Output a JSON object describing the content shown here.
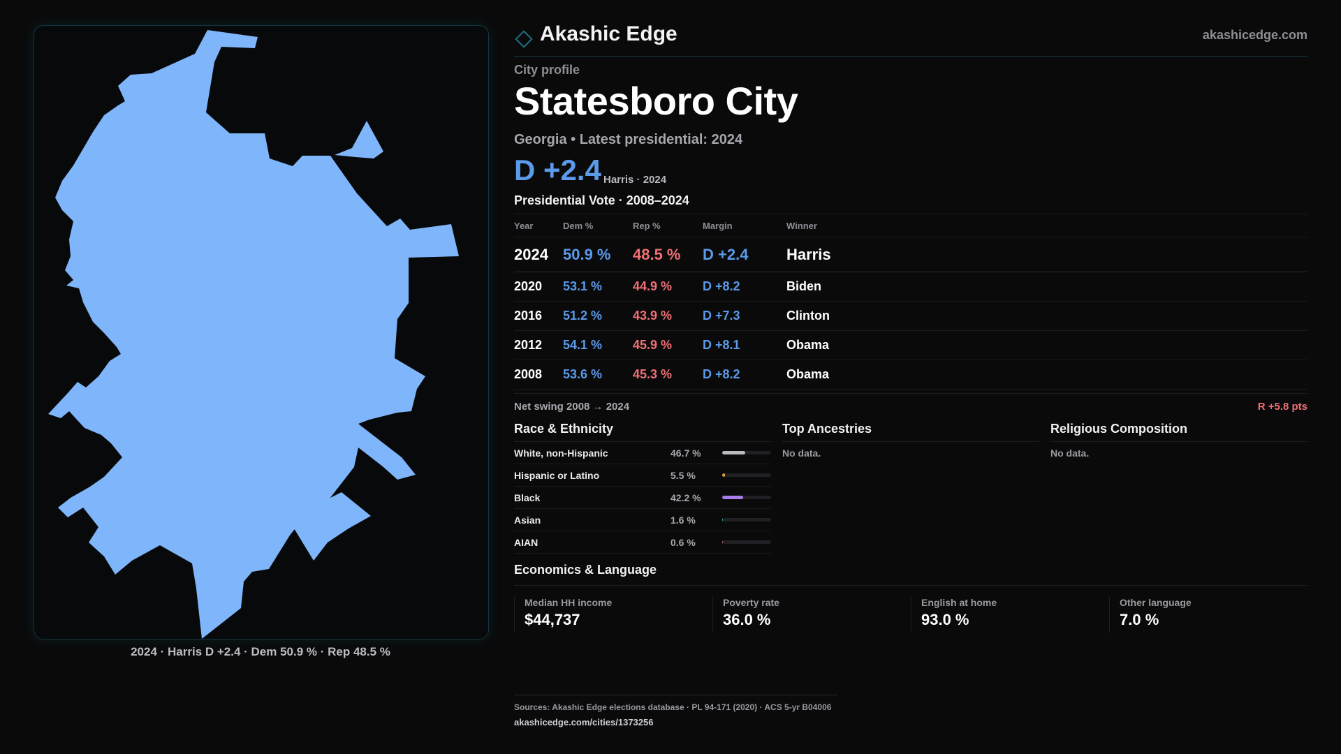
{
  "brand": {
    "name": "Akashic Edge",
    "url": "akashicedge.com",
    "accent": "#1f6f80"
  },
  "profile": {
    "eyebrow": "City profile",
    "city": "Statesboro City",
    "subtitle": "Georgia • Latest presidential: 2024",
    "margin_big": "D +2.4",
    "margin_note": "Harris · 2024"
  },
  "map": {
    "caption": "2024 · Harris D +2.4 · Dem 50.9 % · Rep 48.5 %",
    "fill_color": "#7fb5fb"
  },
  "vote": {
    "title": "Presidential Vote · 2008–2024",
    "headers": {
      "year": "Year",
      "dem": "Dem %",
      "rep": "Rep %",
      "margin": "Margin",
      "winner": "Winner"
    },
    "rows": [
      {
        "year": "2024",
        "dem": "50.9 %",
        "rep": "48.5 %",
        "margin": "D +2.4",
        "winner": "Harris"
      },
      {
        "year": "2020",
        "dem": "53.1 %",
        "rep": "44.9 %",
        "margin": "D +8.2",
        "winner": "Biden"
      },
      {
        "year": "2016",
        "dem": "51.2 %",
        "rep": "43.9 %",
        "margin": "D +7.3",
        "winner": "Clinton"
      },
      {
        "year": "2012",
        "dem": "54.1 %",
        "rep": "45.9 %",
        "margin": "D +8.1",
        "winner": "Obama"
      },
      {
        "year": "2008",
        "dem": "53.6 %",
        "rep": "45.3 %",
        "margin": "D +8.2",
        "winner": "Obama"
      }
    ],
    "swing_label": "Net swing 2008 → 2024",
    "swing_value": "R +5.8 pts"
  },
  "race": {
    "title": "Race & Ethnicity",
    "rows": [
      {
        "name": "White, non-Hispanic",
        "pct": "46.7 %",
        "share": 0.467,
        "color": "#b9b9be"
      },
      {
        "name": "Hispanic or Latino",
        "pct": "5.5 %",
        "share": 0.055,
        "color": "#e89a32"
      },
      {
        "name": "Black",
        "pct": "42.2 %",
        "share": 0.422,
        "color": "#a77ee8"
      },
      {
        "name": "Asian",
        "pct": "1.6 %",
        "share": 0.016,
        "color": "#37b9a6"
      },
      {
        "name": "AIAN",
        "pct": "0.6 %",
        "share": 0.006,
        "color": "#e0607a"
      }
    ]
  },
  "ancestries": {
    "title": "Top Ancestries",
    "empty": "No data."
  },
  "religion": {
    "title": "Religious Composition",
    "empty": "No data."
  },
  "economics": {
    "title": "Economics & Language",
    "cells": [
      {
        "label": "Median HH income",
        "value": "$44,737"
      },
      {
        "label": "Poverty rate",
        "value": "36.0 %"
      },
      {
        "label": "English at home",
        "value": "93.0 %"
      },
      {
        "label": "Other language",
        "value": "7.0 %"
      }
    ]
  },
  "footer": {
    "sources": "Sources: Akashic Edge elections database · PL 94-171 (2020) · ACS 5-yr B04006",
    "url": "akashicedge.com/cities/1373256"
  }
}
